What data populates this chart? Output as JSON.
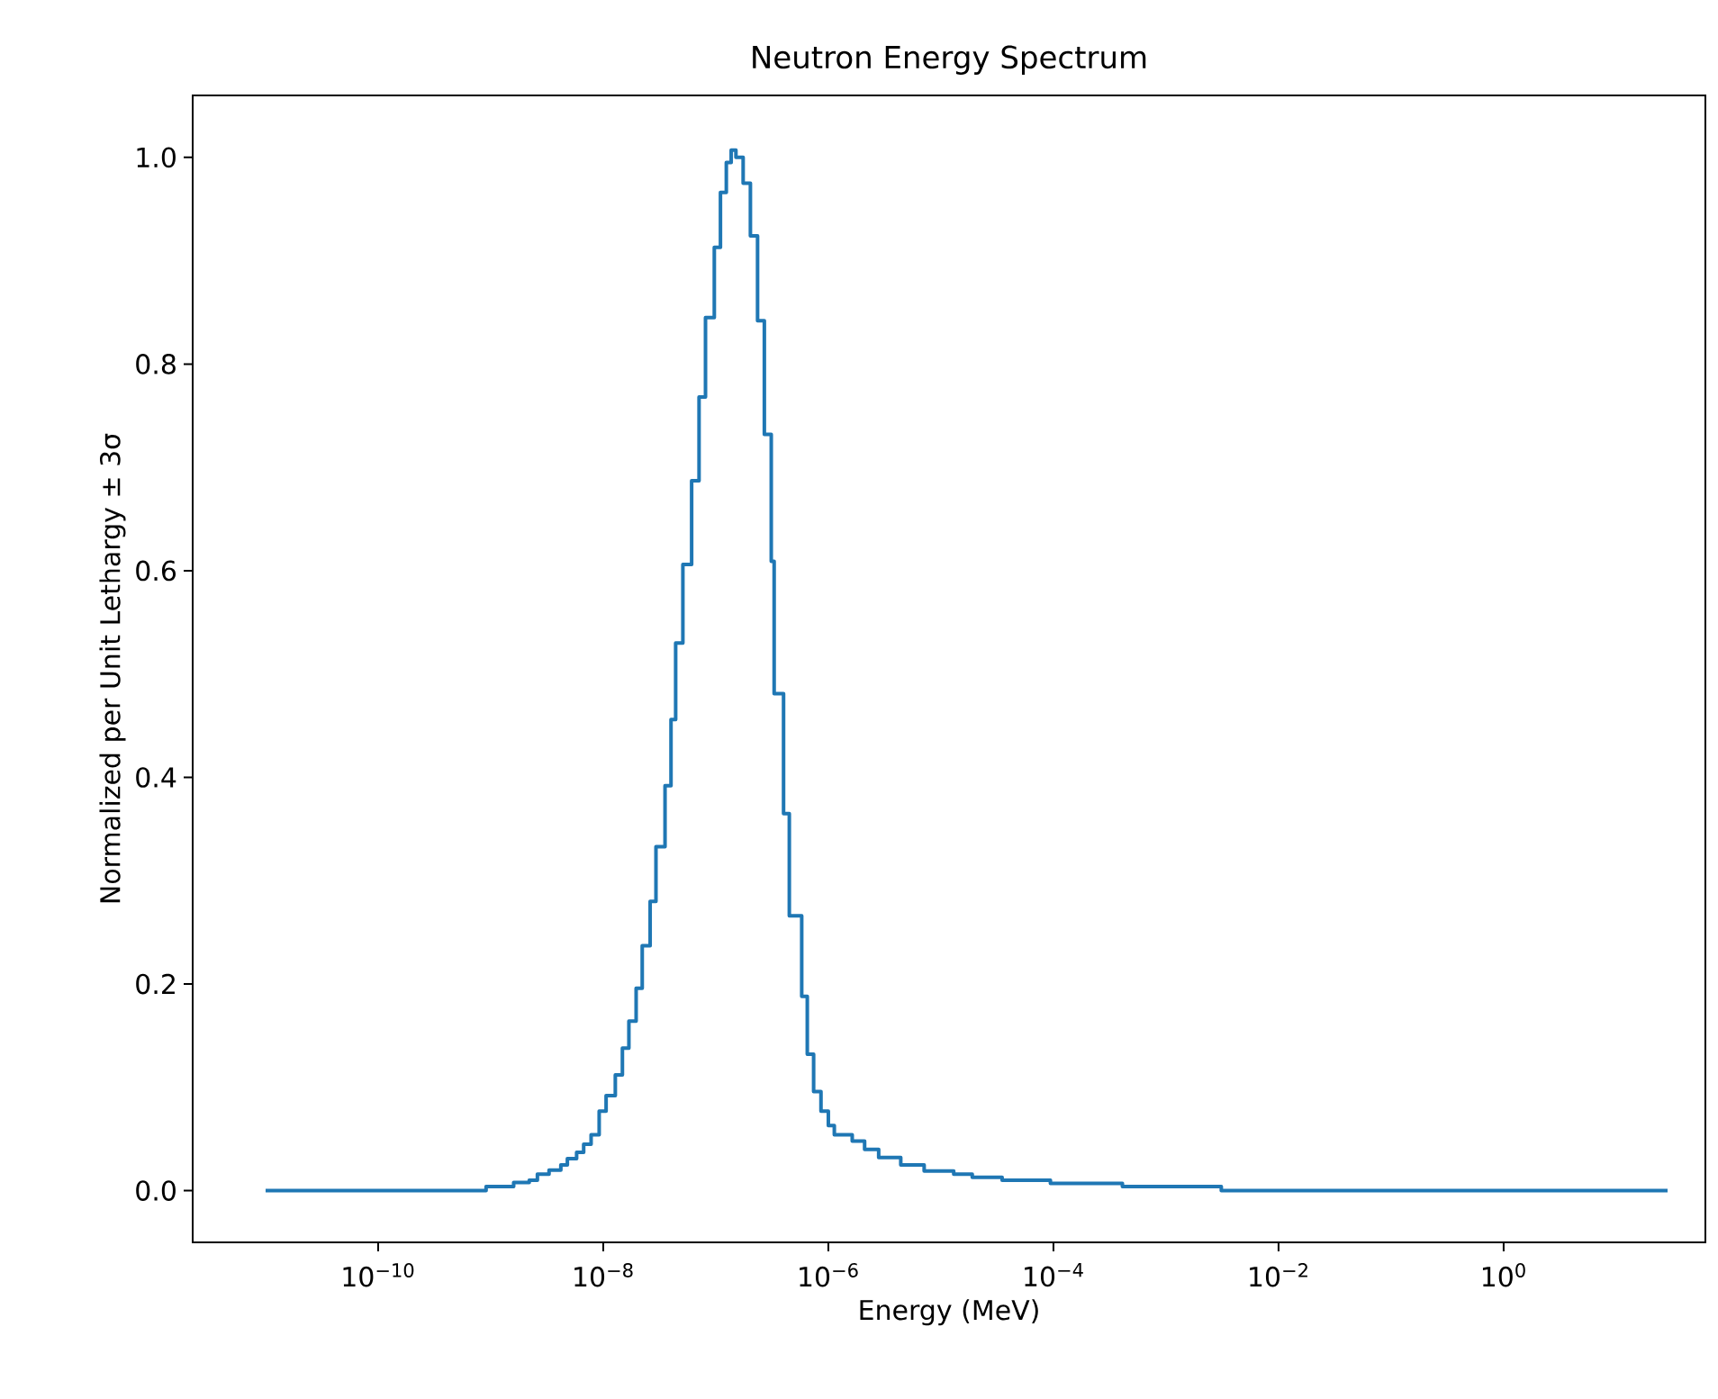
{
  "chart_data": {
    "type": "step",
    "title": "Neutron Energy Spectrum",
    "xlabel": "Energy (MeV)",
    "ylabel": "Normalized per Unit Lethargy ± 3σ",
    "log": "x",
    "xlim": [
      2.25e-12,
      62
    ],
    "ylim": [
      -0.05,
      1.06
    ],
    "xticks": [
      {
        "value": 1e-10,
        "label": "10$^{−10}$"
      },
      {
        "value": 1e-08,
        "label": "10$^{−8}$"
      },
      {
        "value": 1e-06,
        "label": "10$^{−6}$"
      },
      {
        "value": 0.0001,
        "label": "10$^{−4}$"
      },
      {
        "value": 0.01,
        "label": "10$^{−2}$"
      },
      {
        "value": 1,
        "label": "10$^{0}$"
      }
    ],
    "yticks": [
      {
        "value": 0,
        "label": "0.0"
      },
      {
        "value": 0.2,
        "label": "0.2"
      },
      {
        "value": 0.4,
        "label": "0.4"
      },
      {
        "value": 0.6,
        "label": "0.6"
      },
      {
        "value": 0.8,
        "label": "0.8"
      },
      {
        "value": 1.0,
        "label": "1.0"
      }
    ],
    "series": [
      {
        "color": "#1f77b4",
        "x": [
          1e-11,
          9.1e-10,
          1.6e-09,
          2.2e-09,
          2.6e-09,
          3.3e-09,
          4.2e-09,
          4.8e-09,
          5.8e-09,
          6.7e-09,
          7.8e-09,
          9.2e-09,
          1.06e-08,
          1.28e-08,
          1.48e-08,
          1.69e-08,
          1.96e-08,
          2.22e-08,
          2.61e-08,
          2.94e-08,
          3.54e-08,
          4e-08,
          4.4e-08,
          5.1e-08,
          6.1e-08,
          7.1e-08,
          8.1e-08,
          9.7e-08,
          1.1e-07,
          1.24e-07,
          1.37e-07,
          1.51e-07,
          1.75e-07,
          2.03e-07,
          2.35e-07,
          2.7e-07,
          3.11e-07,
          3.3e-07,
          4e-07,
          4.5e-07,
          5.8e-07,
          6.5e-07,
          7.4e-07,
          8.6e-07,
          1e-06,
          1.13e-06,
          1.63e-06,
          2.1e-06,
          2.8e-06,
          4.4e-06,
          7.1e-06,
          1.3e-05,
          1.9e-05,
          3.5e-05,
          9.4e-05,
          0.00041,
          0.0031,
          28.6
        ],
        "values": [
          0,
          0.004,
          0.008,
          0.01,
          0.016,
          0.02,
          0.025,
          0.031,
          0.037,
          0.045,
          0.054,
          0.077,
          0.092,
          0.112,
          0.138,
          0.164,
          0.196,
          0.237,
          0.28,
          0.333,
          0.392,
          0.456,
          0.53,
          0.606,
          0.687,
          0.768,
          0.845,
          0.913,
          0.966,
          0.995,
          1.007,
          1.0,
          0.975,
          0.924,
          0.842,
          0.732,
          0.609,
          0.481,
          0.365,
          0.266,
          0.188,
          0.132,
          0.096,
          0.077,
          0.063,
          0.054,
          0.048,
          0.04,
          0.032,
          0.025,
          0.019,
          0.016,
          0.013,
          0.01,
          0.007,
          0.004,
          0,
          0
        ]
      }
    ]
  }
}
